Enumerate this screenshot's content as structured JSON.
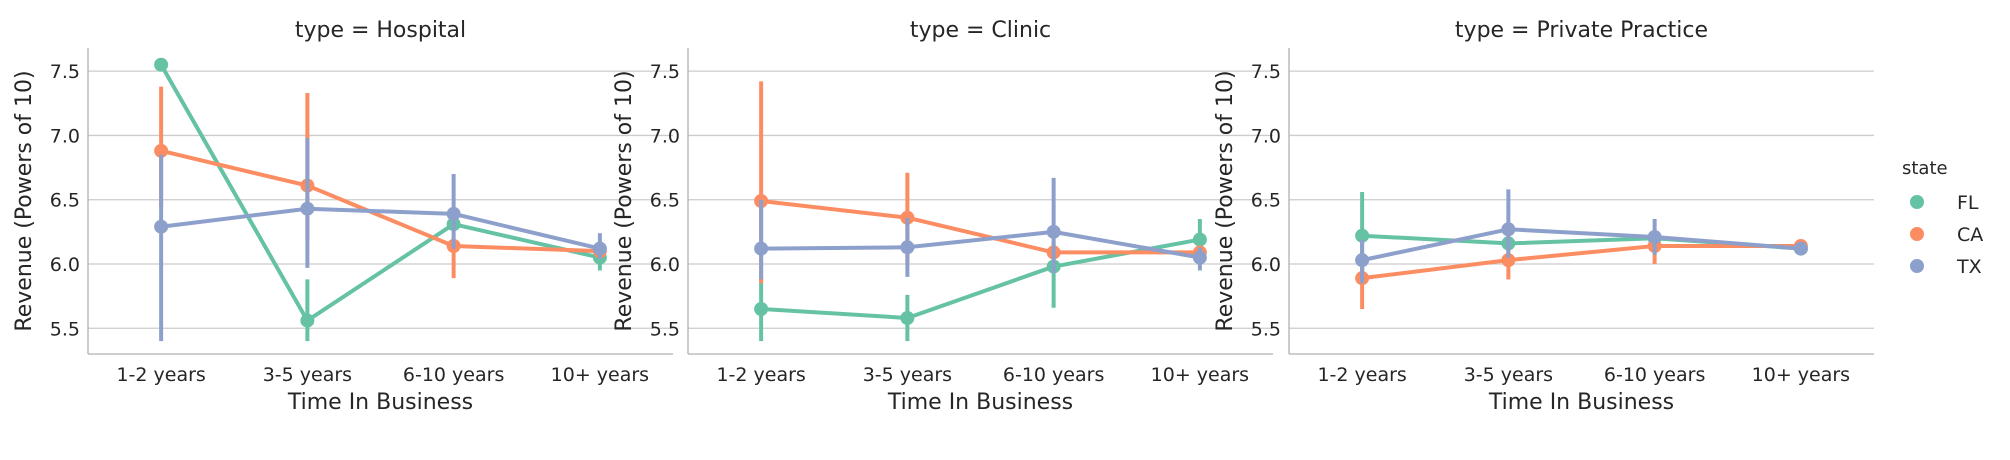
{
  "chart_data": {
    "type": "line",
    "subtype": "pointplot",
    "xlabel": "Time In Business",
    "ylabel": "Revenue (Powers of 10)",
    "categories": [
      "1-2 years",
      "3-5 years",
      "6-10 years",
      "10+ years"
    ],
    "ylim": [
      5.3,
      7.68
    ],
    "yticks": [
      5.5,
      6.0,
      6.5,
      7.0,
      7.5
    ],
    "ytick_labels": [
      "5.5",
      "6.0",
      "6.5",
      "7.0",
      "7.5"
    ],
    "grid": "horizontal",
    "legend": {
      "title": "state",
      "placement": "right",
      "entries": [
        {
          "name": "FL",
          "color": "#66c2a5"
        },
        {
          "name": "CA",
          "color": "#fc8d62"
        },
        {
          "name": "TX",
          "color": "#8da0cb"
        }
      ]
    },
    "panels": [
      {
        "title": "type = Hospital",
        "series": [
          {
            "name": "FL",
            "color": "#66c2a5",
            "values": [
              7.55,
              5.56,
              6.31,
              6.05
            ],
            "ci": [
              [
                7.55,
                7.55
              ],
              [
                5.4,
                5.88
              ],
              [
                6.31,
                6.31
              ],
              [
                5.95,
                6.14
              ]
            ]
          },
          {
            "name": "CA",
            "color": "#fc8d62",
            "values": [
              6.88,
              6.61,
              6.14,
              6.1
            ],
            "ci": [
              [
                6.44,
                7.38
              ],
              [
                6.19,
                7.33
              ],
              [
                5.89,
                6.2
              ],
              [
                6.04,
                6.16
              ]
            ]
          },
          {
            "name": "TX",
            "color": "#8da0cb",
            "values": [
              6.29,
              6.43,
              6.39,
              6.12
            ],
            "ci": [
              [
                5.4,
                6.85
              ],
              [
                5.97,
                6.98
              ],
              [
                6.12,
                6.7
              ],
              [
                6.04,
                6.24
              ]
            ]
          }
        ]
      },
      {
        "title": "type = Clinic",
        "series": [
          {
            "name": "FL",
            "color": "#66c2a5",
            "values": [
              5.65,
              5.58,
              5.98,
              6.19
            ],
            "ci": [
              [
                5.4,
                5.9
              ],
              [
                5.4,
                5.76
              ],
              [
                5.66,
                6.08
              ],
              [
                6.05,
                6.35
              ]
            ]
          },
          {
            "name": "CA",
            "color": "#fc8d62",
            "values": [
              6.49,
              6.36,
              6.09,
              6.09
            ],
            "ci": [
              [
                5.85,
                7.42
              ],
              [
                6.01,
                6.71
              ],
              [
                6.04,
                6.17
              ],
              [
                6.04,
                6.14
              ]
            ]
          },
          {
            "name": "TX",
            "color": "#8da0cb",
            "values": [
              6.12,
              6.13,
              6.25,
              6.05
            ],
            "ci": [
              [
                5.88,
                6.5
              ],
              [
                5.9,
                6.36
              ],
              [
                5.93,
                6.67
              ],
              [
                5.95,
                6.13
              ]
            ]
          }
        ]
      },
      {
        "title": "type = Private Practice",
        "series": [
          {
            "name": "FL",
            "color": "#66c2a5",
            "values": [
              6.22,
              6.16,
              6.2,
              6.12
            ],
            "ci": [
              [
                5.85,
                6.56
              ],
              [
                6.05,
                6.25
              ],
              [
                6.15,
                6.26
              ],
              [
                6.09,
                6.16
              ]
            ]
          },
          {
            "name": "CA",
            "color": "#fc8d62",
            "values": [
              5.89,
              6.03,
              6.14,
              6.14
            ],
            "ci": [
              [
                5.65,
                6.05
              ],
              [
                5.88,
                6.14
              ],
              [
                6.0,
                6.2
              ],
              [
                6.11,
                6.17
              ]
            ]
          },
          {
            "name": "TX",
            "color": "#8da0cb",
            "values": [
              6.03,
              6.27,
              6.21,
              6.12
            ],
            "ci": [
              [
                5.85,
                6.19
              ],
              [
                6.05,
                6.58
              ],
              [
                6.07,
                6.35
              ],
              [
                6.09,
                6.16
              ]
            ]
          }
        ]
      }
    ]
  }
}
